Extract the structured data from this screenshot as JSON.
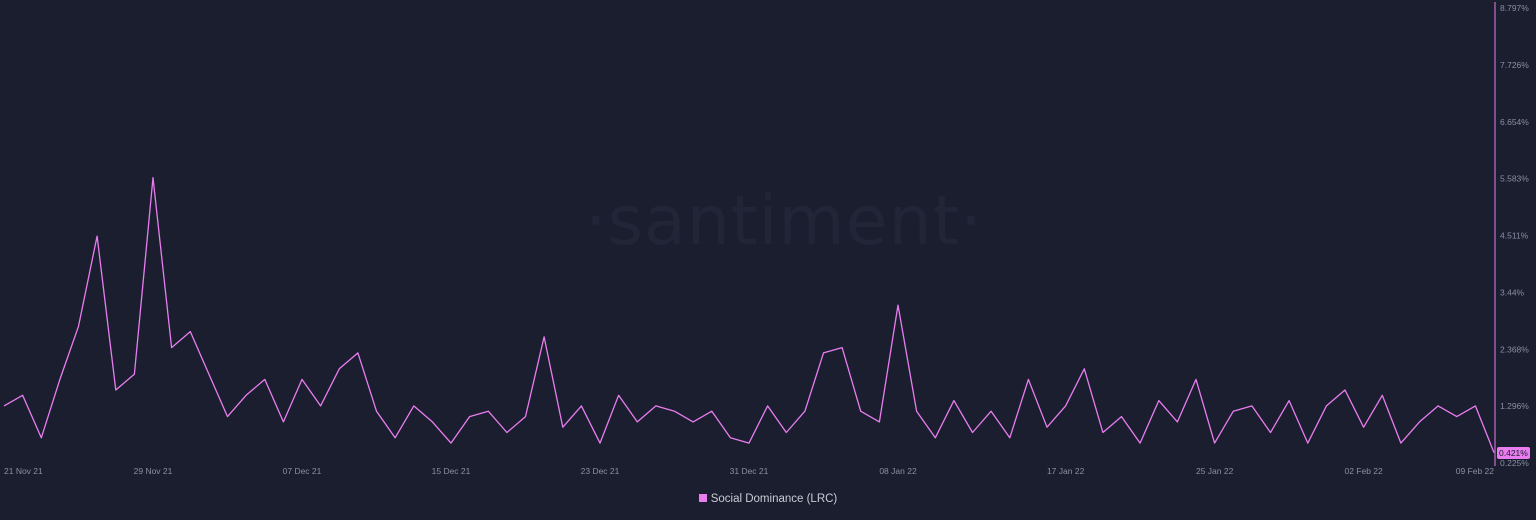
{
  "watermark": "·santiment·",
  "legend": {
    "label": "Social Dominance (LRC)",
    "color": "#e97df0"
  },
  "last_value_label": "0.421%",
  "colors": {
    "background": "#1b1e2f",
    "line": "#e97df0",
    "axis": "#e97df0",
    "tick_text": "#8a8fa3"
  },
  "chart_data": {
    "type": "line",
    "title": "",
    "xlabel": "",
    "ylabel": "",
    "x_ticks": [
      "21 Nov 21",
      "29 Nov 21",
      "07 Dec 21",
      "15 Dec 21",
      "23 Dec 21",
      "31 Dec 21",
      "08 Jan 22",
      "17 Jan 22",
      "25 Jan 22",
      "02 Feb 22",
      "09 Feb 22"
    ],
    "y_ticks": [
      "0.225%",
      "1.296%",
      "2.368%",
      "3.44%",
      "4.511%",
      "5.583%",
      "6.654%",
      "7.726%",
      "8.797%"
    ],
    "ylim": [
      0.225,
      8.797
    ],
    "xlim": [
      "2021-11-21",
      "2022-02-09"
    ],
    "grid": false,
    "legend_position": "bottom-center",
    "series": [
      {
        "name": "Social Dominance (LRC)",
        "points": [
          [
            "2021-11-21",
            1.3
          ],
          [
            "2021-11-22",
            1.5
          ],
          [
            "2021-11-23",
            0.7
          ],
          [
            "2021-11-24",
            1.8
          ],
          [
            "2021-11-25",
            2.8
          ],
          [
            "2021-11-26",
            4.5
          ],
          [
            "2021-11-27",
            1.6
          ],
          [
            "2021-11-28",
            1.9
          ],
          [
            "2021-11-29",
            5.6
          ],
          [
            "2021-11-30",
            2.4
          ],
          [
            "2021-12-01",
            2.7
          ],
          [
            "2021-12-02",
            1.9
          ],
          [
            "2021-12-03",
            1.1
          ],
          [
            "2021-12-04",
            1.5
          ],
          [
            "2021-12-05",
            1.8
          ],
          [
            "2021-12-06",
            1.0
          ],
          [
            "2021-12-07",
            1.8
          ],
          [
            "2021-12-08",
            1.3
          ],
          [
            "2021-12-09",
            2.0
          ],
          [
            "2021-12-10",
            2.3
          ],
          [
            "2021-12-11",
            1.2
          ],
          [
            "2021-12-12",
            0.7
          ],
          [
            "2021-12-13",
            1.3
          ],
          [
            "2021-12-14",
            1.0
          ],
          [
            "2021-12-15",
            0.6
          ],
          [
            "2021-12-16",
            1.1
          ],
          [
            "2021-12-17",
            1.2
          ],
          [
            "2021-12-18",
            0.8
          ],
          [
            "2021-12-19",
            1.1
          ],
          [
            "2021-12-20",
            2.6
          ],
          [
            "2021-12-21",
            0.9
          ],
          [
            "2021-12-22",
            1.3
          ],
          [
            "2021-12-23",
            0.6
          ],
          [
            "2021-12-24",
            1.5
          ],
          [
            "2021-12-25",
            1.0
          ],
          [
            "2021-12-26",
            1.3
          ],
          [
            "2021-12-27",
            1.2
          ],
          [
            "2021-12-28",
            1.0
          ],
          [
            "2021-12-29",
            1.2
          ],
          [
            "2021-12-30",
            0.7
          ],
          [
            "2021-12-31",
            0.6
          ],
          [
            "2022-01-01",
            1.3
          ],
          [
            "2022-01-02",
            0.8
          ],
          [
            "2022-01-03",
            1.2
          ],
          [
            "2022-01-04",
            2.3
          ],
          [
            "2022-01-05",
            2.4
          ],
          [
            "2022-01-06",
            1.2
          ],
          [
            "2022-01-07",
            1.0
          ],
          [
            "2022-01-08",
            3.2
          ],
          [
            "2022-01-09",
            1.2
          ],
          [
            "2022-01-10",
            0.7
          ],
          [
            "2022-01-11",
            1.4
          ],
          [
            "2022-01-12",
            0.8
          ],
          [
            "2022-01-13",
            1.2
          ],
          [
            "2022-01-14",
            0.7
          ],
          [
            "2022-01-15",
            1.8
          ],
          [
            "2022-01-16",
            0.9
          ],
          [
            "2022-01-17",
            1.3
          ],
          [
            "2022-01-18",
            2.0
          ],
          [
            "2022-01-19",
            0.8
          ],
          [
            "2022-01-20",
            1.1
          ],
          [
            "2022-01-21",
            0.6
          ],
          [
            "2022-01-22",
            1.4
          ],
          [
            "2022-01-23",
            1.0
          ],
          [
            "2022-01-24",
            1.8
          ],
          [
            "2022-01-25",
            0.6
          ],
          [
            "2022-01-26",
            1.2
          ],
          [
            "2022-01-27",
            1.3
          ],
          [
            "2022-01-28",
            0.8
          ],
          [
            "2022-01-29",
            1.4
          ],
          [
            "2022-01-30",
            0.6
          ],
          [
            "2022-01-31",
            1.3
          ],
          [
            "2022-02-01",
            1.6
          ],
          [
            "2022-02-02",
            0.9
          ],
          [
            "2022-02-03",
            1.5
          ],
          [
            "2022-02-04",
            0.6
          ],
          [
            "2022-02-05",
            1.0
          ],
          [
            "2022-02-06",
            1.3
          ],
          [
            "2022-02-07",
            1.1
          ],
          [
            "2022-02-08",
            1.3
          ],
          [
            "2022-02-09",
            0.421
          ]
        ]
      }
    ]
  }
}
